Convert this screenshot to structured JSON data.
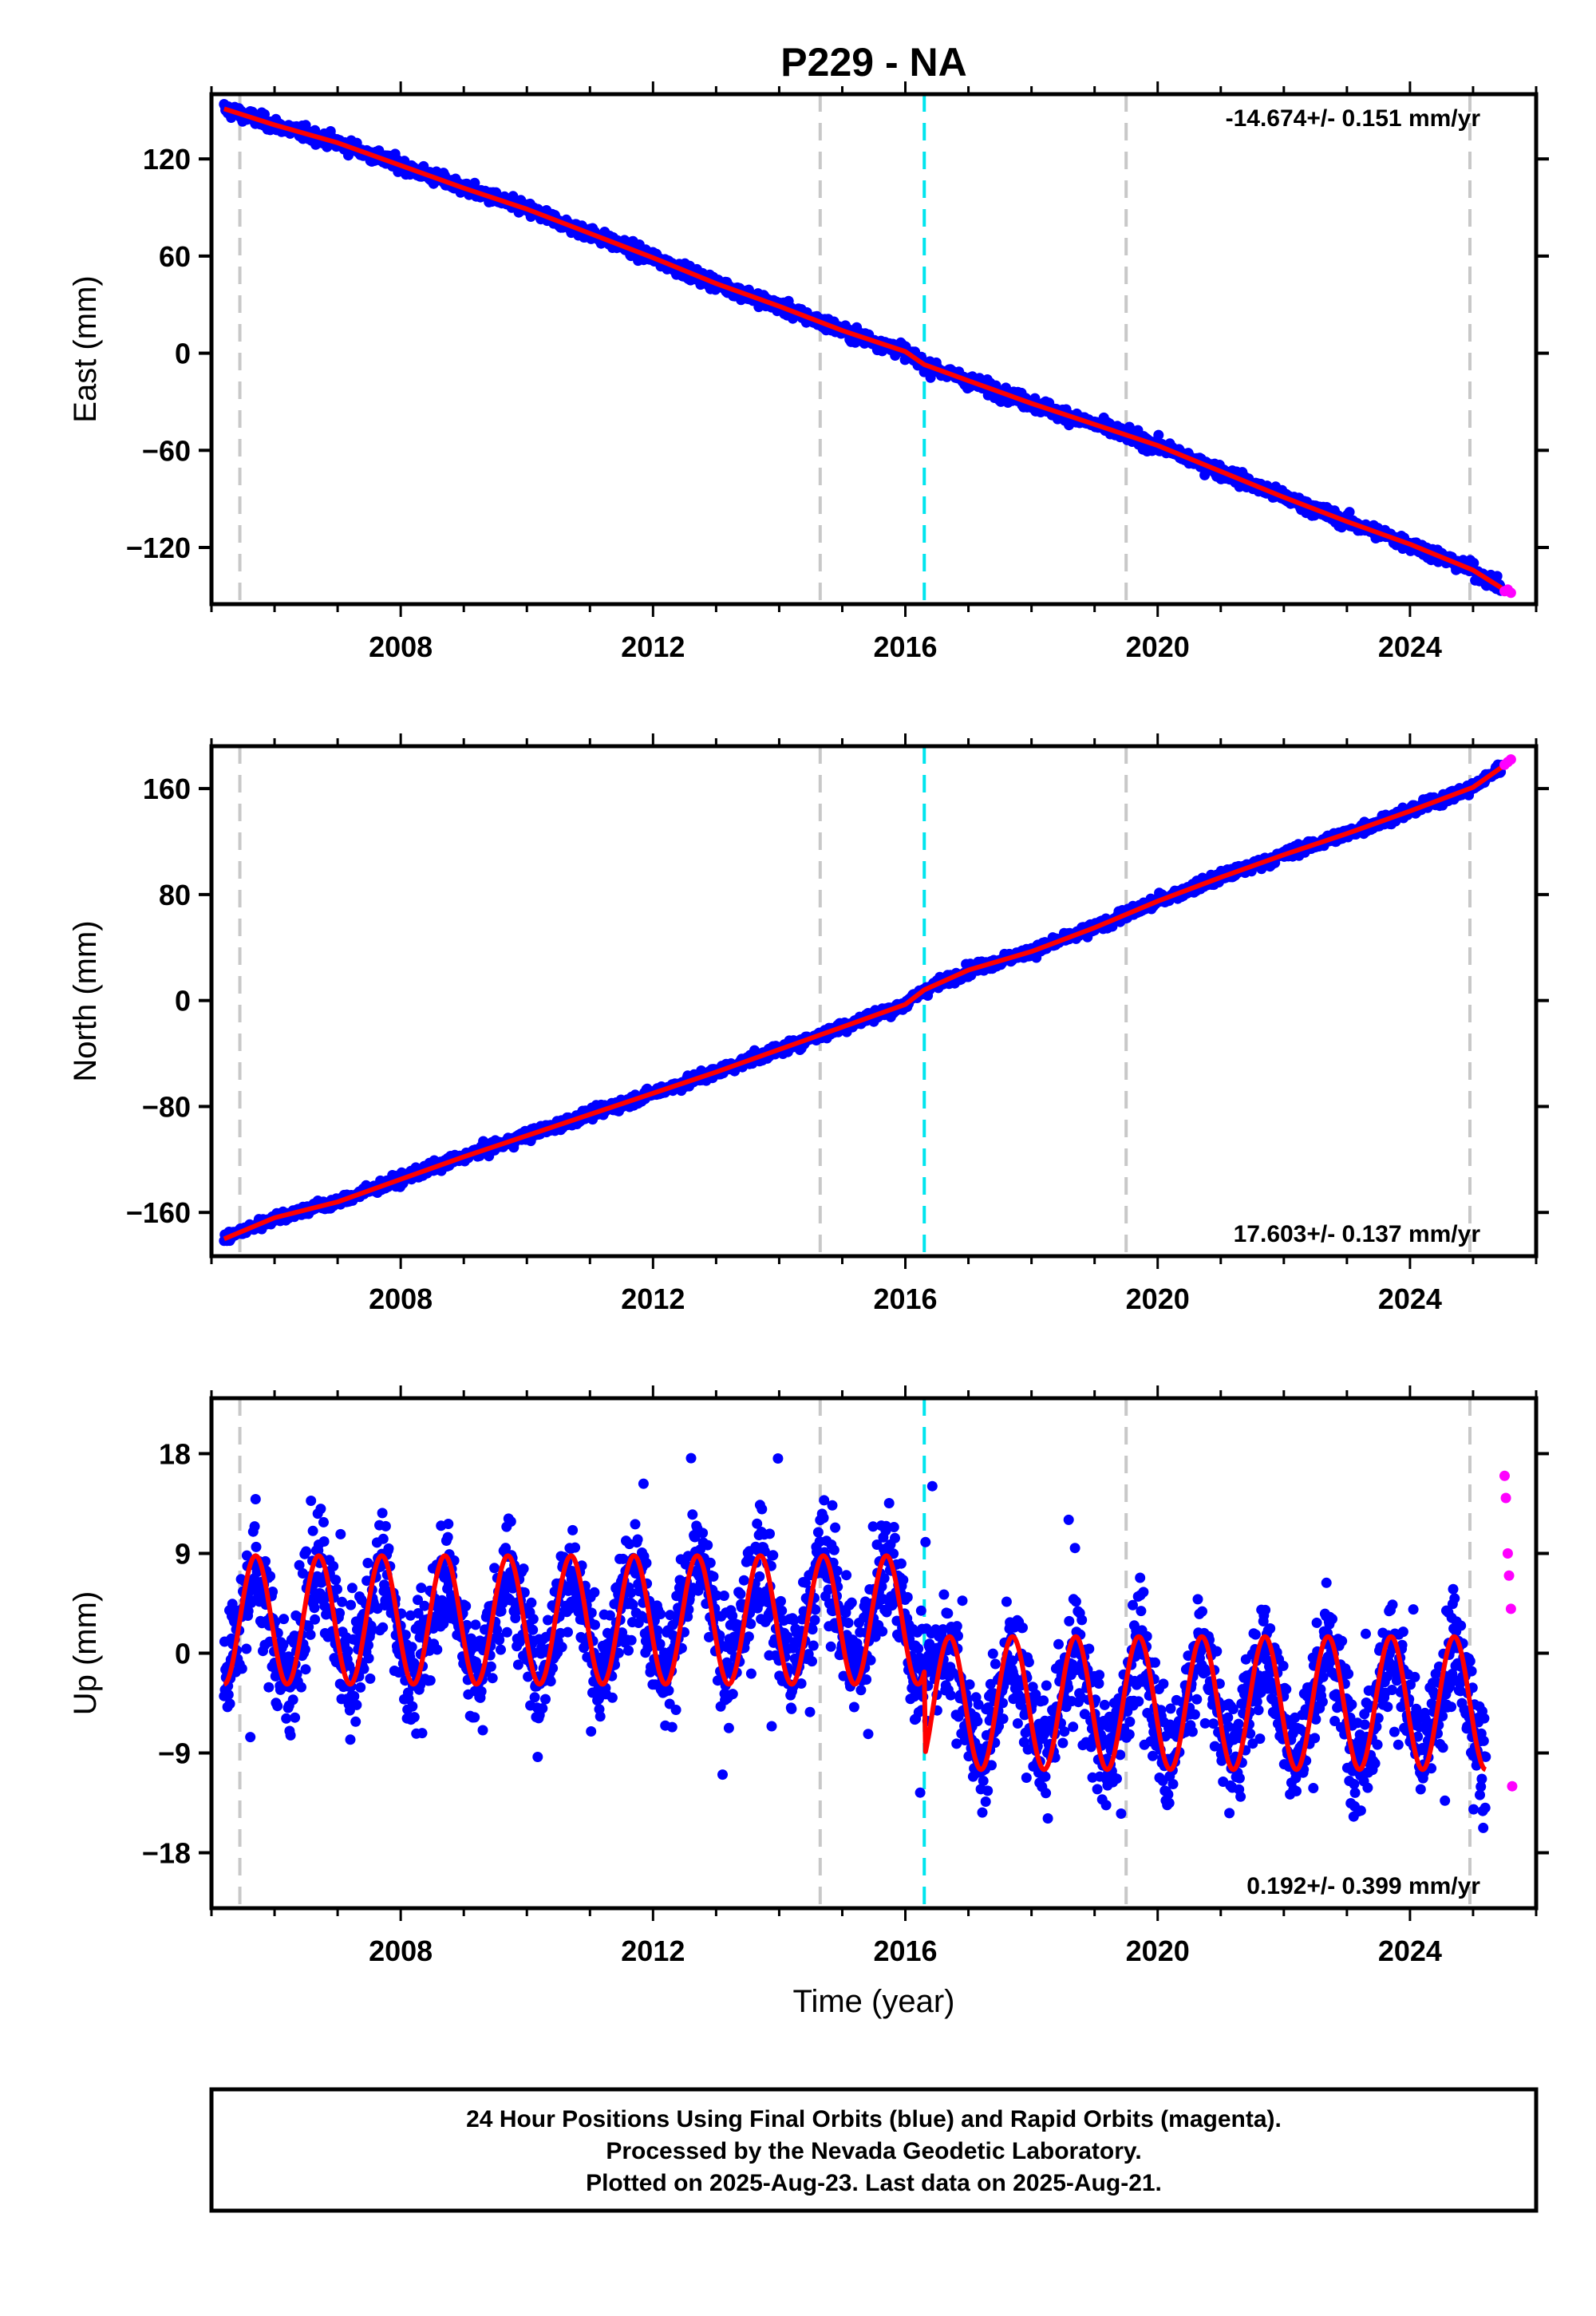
{
  "title": "P229 - NA",
  "colors": {
    "final_orbits": "#0000ff",
    "rapid_orbits": "#ff00ff",
    "model": "#ff0000",
    "event_line": "#c8c8c8",
    "antenna_change": "#00e5ee",
    "frame": "#000000"
  },
  "footer": [
    "24 Hour Positions Using Final Orbits (blue) and Rapid Orbits (magenta).",
    "Processed by the Nevada Geodetic Laboratory.",
    "Plotted on 2025-Aug-23. Last data on 2025-Aug-21."
  ],
  "chart_data": [
    {
      "type": "scatter",
      "ylabel": "East (mm)",
      "xlabel": "",
      "xlim": [
        2005.0,
        2026.0
      ],
      "ylim": [
        -155,
        160
      ],
      "yticks": [
        -120,
        -60,
        0,
        60,
        120
      ],
      "xticks": [
        2008,
        2012,
        2016,
        2020,
        2024
      ],
      "rate_label": "-14.674+/- 0.151 mm/yr",
      "rate_position": "top-right",
      "grid": false,
      "event_lines": [
        2005.45,
        2014.65,
        2019.5,
        2024.95
      ],
      "antenna_line": 2016.3,
      "series": [
        {
          "kind": "final_orbits",
          "x": [
            2005.2,
            2006,
            2007,
            2008,
            2009,
            2010,
            2011,
            2012,
            2013,
            2014,
            2015,
            2016,
            2016.3,
            2017,
            2018,
            2019,
            2020,
            2021,
            2022,
            2023,
            2024,
            2025,
            2025.45
          ],
          "y": [
            151,
            141,
            130,
            116,
            102,
            89,
            74,
            59,
            43,
            29,
            14,
            1,
            -7,
            -17,
            -31,
            -44,
            -57,
            -73,
            -89,
            -104,
            -118,
            -134,
            -145
          ]
        },
        {
          "kind": "rapid_orbits",
          "x": [
            2025.5,
            2025.55,
            2025.6
          ],
          "y": [
            -147,
            -146,
            -148
          ]
        }
      ]
    },
    {
      "type": "scatter",
      "ylabel": "North (mm)",
      "xlabel": "",
      "xlim": [
        2005.0,
        2026.0
      ],
      "ylim": [
        -193,
        192
      ],
      "yticks": [
        -160,
        -80,
        0,
        80,
        160
      ],
      "xticks": [
        2008,
        2012,
        2016,
        2020,
        2024
      ],
      "rate_label": "17.603+/- 0.137 mm/yr",
      "rate_position": "bottom-right",
      "grid": false,
      "event_lines": [
        2005.45,
        2014.65,
        2019.5,
        2024.95
      ],
      "antenna_line": 2016.3,
      "series": [
        {
          "kind": "final_orbits",
          "x": [
            2005.2,
            2006,
            2007,
            2008,
            2009,
            2010,
            2011,
            2012,
            2013,
            2014,
            2015,
            2016,
            2016.3,
            2017,
            2018,
            2019,
            2020,
            2021,
            2022,
            2023,
            2024,
            2025,
            2025.45
          ],
          "y": [
            -180,
            -164,
            -152,
            -135,
            -118,
            -102,
            -86,
            -70,
            -54,
            -37,
            -20,
            -3,
            8,
            23,
            37,
            55,
            75,
            93,
            110,
            126,
            143,
            161,
            176
          ]
        },
        {
          "kind": "rapid_orbits",
          "x": [
            2025.5,
            2025.55,
            2025.6
          ],
          "y": [
            178,
            180,
            182
          ]
        }
      ]
    },
    {
      "type": "scatter",
      "ylabel": "Up (mm)",
      "xlabel": "Time (year)",
      "xlim": [
        2005.0,
        2026.0
      ],
      "ylim": [
        -23,
        23
      ],
      "yticks": [
        -18,
        -9,
        0,
        9,
        18
      ],
      "xticks": [
        2008,
        2012,
        2016,
        2020,
        2024
      ],
      "rate_label": "0.192+/- 0.399 mm/yr",
      "rate_position": "bottom-right",
      "grid": false,
      "event_lines": [
        2005.45,
        2014.65,
        2019.5,
        2024.95
      ],
      "antenna_line": 2016.3,
      "series": [
        {
          "kind": "final_orbits",
          "x": [
            2005.2,
            2005.7,
            2006.2,
            2006.7,
            2007.2,
            2007.7,
            2008.2,
            2008.7,
            2009.2,
            2009.7,
            2010.2,
            2010.7,
            2011.2,
            2011.7,
            2012.2,
            2012.7,
            2013.2,
            2013.7,
            2014.2,
            2014.7,
            2015.2,
            2015.7,
            2016.2,
            2016.7,
            2017.2,
            2017.7,
            2018.2,
            2018.7,
            2019.2,
            2019.7,
            2020.2,
            2020.7,
            2021.2,
            2021.7,
            2022.2,
            2022.7,
            2023.2,
            2023.7,
            2024.2,
            2024.7,
            2025.2
          ],
          "y": [
            -2,
            8,
            -3,
            8,
            -3,
            8,
            -3,
            8,
            -3,
            8,
            -3,
            8,
            -3,
            9,
            -2,
            9,
            -2,
            9,
            -2,
            9,
            -2,
            9,
            -2,
            1,
            -10,
            1,
            -10,
            1,
            -10,
            1,
            -10,
            1,
            -10,
            1,
            -10,
            1,
            -10,
            1,
            -10,
            1,
            -11
          ]
        },
        {
          "kind": "rapid_orbits",
          "x": [
            2025.5,
            2025.52,
            2025.55,
            2025.57,
            2025.6,
            2025.62
          ],
          "y": [
            16,
            14,
            9,
            7,
            4,
            -12
          ]
        }
      ]
    }
  ]
}
